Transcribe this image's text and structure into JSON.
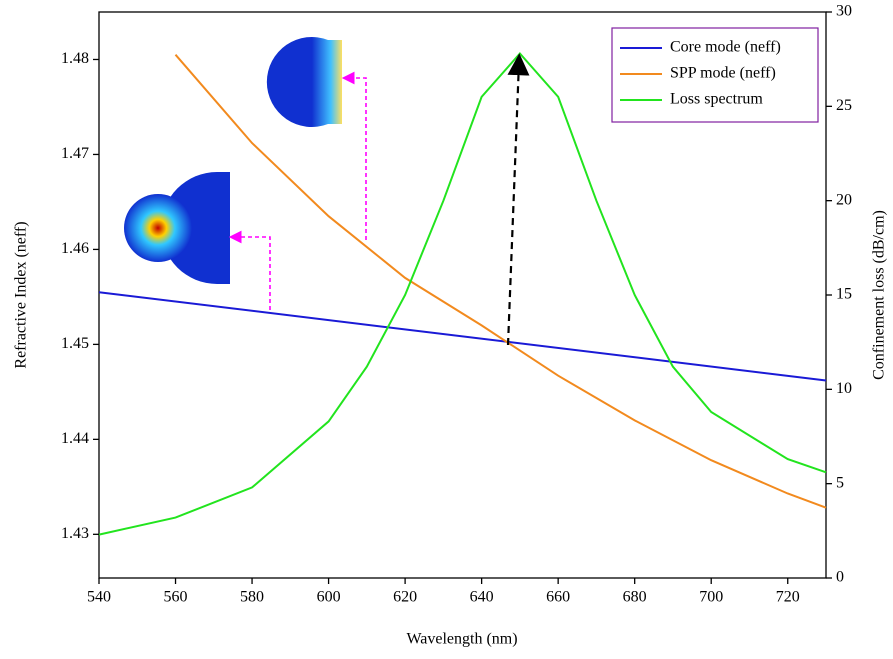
{
  "chart_data": {
    "type": "line",
    "x_label": "Wavelength (nm)",
    "y_label": "Refractive Index (neff)",
    "y2_label": "Confinement loss (dB/cm)",
    "xlim": [
      540,
      730
    ],
    "xticks": [
      540,
      560,
      580,
      600,
      620,
      640,
      660,
      680,
      700,
      720
    ],
    "ylim": [
      1.4254,
      1.485
    ],
    "yticks": [
      1.43,
      1.44,
      1.45,
      1.46,
      1.47,
      1.48
    ],
    "y2lim": [
      0,
      30
    ],
    "y2ticks": [
      0,
      5,
      10,
      15,
      20,
      25,
      30
    ],
    "series": [
      {
        "name": "Core mode (neff)",
        "color": "#1a1ad6",
        "x": [
          540,
          730
        ],
        "values": [
          1.4555,
          1.4462
        ]
      },
      {
        "name": "SPP mode (neff)",
        "color": "#f28a1e",
        "x": [
          560,
          580,
          600,
          620,
          640,
          660,
          680,
          700,
          720,
          730
        ],
        "values": [
          1.4805,
          1.4712,
          1.4635,
          1.457,
          1.452,
          1.4467,
          1.442,
          1.4378,
          1.4343,
          1.4328
        ]
      },
      {
        "name": "Loss spectrum",
        "color": "#22e41e",
        "axis": "y2",
        "x": [
          540,
          560,
          580,
          600,
          610,
          620,
          630,
          640,
          650,
          660,
          670,
          680,
          690,
          700,
          720,
          730
        ],
        "values": [
          2.3,
          3.2,
          4.8,
          8.3,
          11.2,
          15.0,
          20.0,
          25.5,
          27.8,
          25.5,
          20.0,
          15.0,
          11.2,
          8.8,
          6.3,
          5.6
        ]
      }
    ],
    "legend": "upper right"
  }
}
